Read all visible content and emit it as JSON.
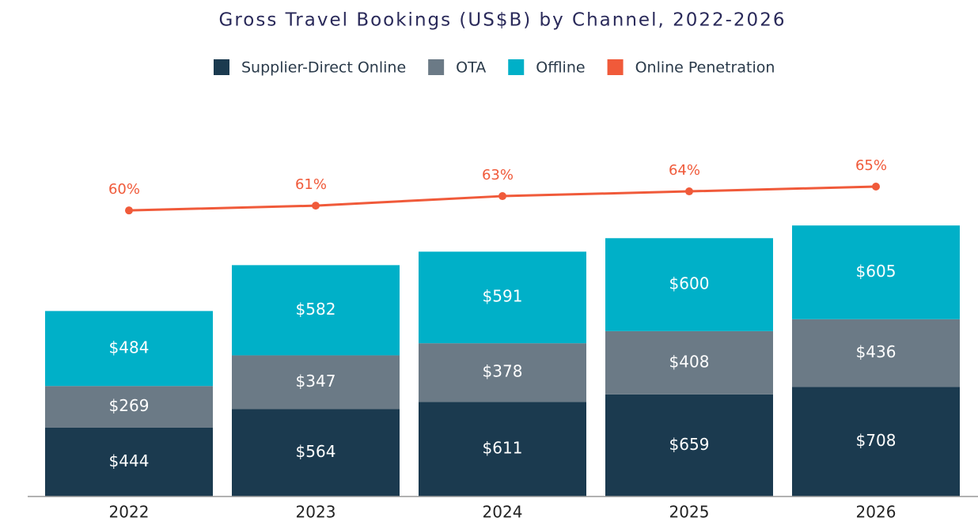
{
  "chart_data": {
    "type": "bar",
    "title": "Gross Travel Bookings (US$B) by Channel, 2022-2026",
    "categories": [
      "2022",
      "2023",
      "2024",
      "2025",
      "2026"
    ],
    "stacked": true,
    "series": [
      {
        "name": "Supplier-Direct Online",
        "color": "#1b3a4f",
        "values": [
          444,
          564,
          611,
          659,
          708
        ],
        "value_labels": [
          "$444",
          "$564",
          "$611",
          "$659",
          "$708"
        ]
      },
      {
        "name": "OTA",
        "color": "#6b7a86",
        "values": [
          269,
          347,
          378,
          408,
          436
        ],
        "value_labels": [
          "$269",
          "$347",
          "$378",
          "$408",
          "$436"
        ]
      },
      {
        "name": "Offline",
        "color": "#00b0c8",
        "values": [
          484,
          582,
          591,
          600,
          605
        ],
        "value_labels": [
          "$484",
          "$582",
          "$591",
          "$600",
          "$605"
        ]
      },
      {
        "name": "Online Penetration",
        "type": "line",
        "axis": "y2",
        "color": "#f05a3a",
        "values": [
          60,
          61,
          63,
          64,
          65
        ],
        "value_labels": [
          "60%",
          "61%",
          "63%",
          "64%",
          "65%"
        ]
      }
    ],
    "ylim": [
      0,
      2000
    ],
    "y2lim": [
      0,
      65
    ],
    "legend": "top"
  }
}
